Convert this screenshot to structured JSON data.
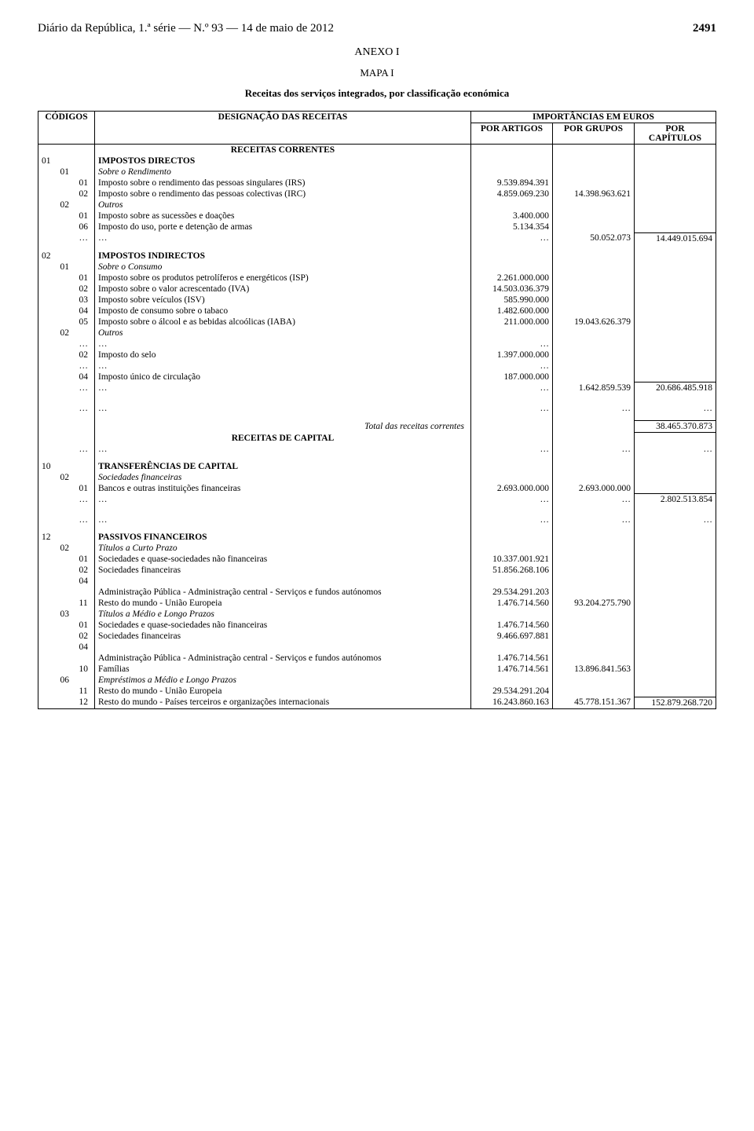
{
  "header": {
    "journal": "Diário da República, 1.ª série — N.º 93 — 14 de maio de 2012",
    "page_number": "2491"
  },
  "titles": {
    "anexo": "ANEXO I",
    "mapa": "MAPA I",
    "subtitle": "Receitas dos serviços integrados, por classificação económica"
  },
  "table_head": {
    "codigos": "CÓDIGOS",
    "designacao": "DESIGNAÇÃO DAS RECEITAS",
    "importancias": "IMPORTÂNCIAS EM EUROS",
    "por_artigos": "POR ARTIGOS",
    "por_grupos": "POR GRUPOS",
    "por_capitulos": "POR\nCAPÍTULOS"
  },
  "body_sections": {
    "receitas_correntes": "RECEITAS CORRENTES",
    "receitas_capital": "RECEITAS DE CAPITAL"
  },
  "labels": {
    "total_correntes": "Total das receitas correntes",
    "dots": "…"
  },
  "sec01": {
    "code": "01",
    "title": "IMPOSTOS DIRECTOS",
    "g01": {
      "code": "01",
      "title": "Sobre o Rendimento",
      "r01": {
        "code": "01",
        "desig": "Imposto sobre o rendimento das pessoas singulares (IRS)",
        "art": "9.539.894.391"
      },
      "r02": {
        "code": "02",
        "desig": "Imposto sobre o rendimento das pessoas colectivas (IRC)",
        "art": "4.859.069.230",
        "grp": "14.398.963.621"
      }
    },
    "g02": {
      "code": "02",
      "title": "Outros",
      "r01": {
        "code": "01",
        "desig": "Imposto sobre as sucessões e doações",
        "art": "3.400.000"
      },
      "r06": {
        "code": "06",
        "desig": "Imposto do uso, porte e detenção de armas",
        "art": "5.134.354"
      },
      "rdots_grp": "50.052.073",
      "cap": "14.449.015.694"
    }
  },
  "sec02": {
    "code": "02",
    "title": "IMPOSTOS INDIRECTOS",
    "g01": {
      "code": "01",
      "title": "Sobre o Consumo",
      "r01": {
        "code": "01",
        "desig": "Imposto sobre os produtos petrolíferos e energéticos (ISP)",
        "art": "2.261.000.000"
      },
      "r02": {
        "code": "02",
        "desig": "Imposto sobre o valor acrescentado (IVA)",
        "art": "14.503.036.379"
      },
      "r03": {
        "code": "03",
        "desig": "Imposto sobre veículos (ISV)",
        "art": "585.990.000"
      },
      "r04": {
        "code": "04",
        "desig": "Imposto de consumo sobre o tabaco",
        "art": "1.482.600.000"
      },
      "r05": {
        "code": "05",
        "desig": "Imposto sobre o álcool e as bebidas alcoólicas (IABA)",
        "art": "211.000.000",
        "grp": "19.043.626.379"
      }
    },
    "g02": {
      "code": "02",
      "title": "Outros",
      "r02": {
        "code": "02",
        "desig": "Imposto do selo",
        "art": "1.397.000.000"
      },
      "r04": {
        "code": "04",
        "desig": "Imposto único de circulação",
        "art": "187.000.000"
      },
      "rdots_grp": "1.642.859.539",
      "cap": "20.686.485.918"
    }
  },
  "total_correntes_val": "38.465.370.873",
  "sec10": {
    "code": "10",
    "title": "TRANSFERÊNCIAS DE CAPITAL",
    "g02": {
      "code": "02",
      "title": "Sociedades financeiras",
      "r01": {
        "code": "01",
        "desig": "Bancos e outras instituições financeiras",
        "art": "2.693.000.000",
        "grp": "2.693.000.000"
      },
      "cap": "2.802.513.854"
    }
  },
  "sec12": {
    "code": "12",
    "title": "PASSIVOS FINANCEIROS",
    "g02": {
      "code": "02",
      "title": "Títulos a Curto Prazo",
      "r01": {
        "code": "01",
        "desig": "Sociedades e quase-sociedades não financeiras",
        "art": "10.337.001.921"
      },
      "r02": {
        "code": "02",
        "desig": "Sociedades financeiras",
        "art": "51.856.268.106"
      },
      "r04": {
        "code": "04",
        "desig": ""
      },
      "r04b": {
        "desig": "Administração Pública - Administração central - Serviços e fundos autónomos",
        "art": "29.534.291.203"
      },
      "r11": {
        "code": "11",
        "desig": "Resto do mundo - União Europeia",
        "art": "1.476.714.560",
        "grp": "93.204.275.790"
      }
    },
    "g03": {
      "code": "03",
      "title": "Títulos a Médio e Longo Prazos",
      "r01": {
        "code": "01",
        "desig": "Sociedades e quase-sociedades não financeiras",
        "art": "1.476.714.560"
      },
      "r02": {
        "code": "02",
        "desig": "Sociedades financeiras",
        "art": "9.466.697.881"
      },
      "r04": {
        "code": "04",
        "desig": ""
      },
      "r04b": {
        "desig": "Administração Pública - Administração central - Serviços e fundos autónomos",
        "art": "1.476.714.561"
      },
      "r10": {
        "code": "10",
        "desig": "Famílias",
        "art": "1.476.714.561",
        "grp": "13.896.841.563"
      }
    },
    "g06": {
      "code": "06",
      "title": "Empréstimos a Médio e Longo Prazos",
      "r11": {
        "code": "11",
        "desig": "Resto do mundo - União Europeia",
        "art": "29.534.291.204"
      },
      "r12": {
        "code": "12",
        "desig": "Resto do mundo - Países terceiros e organizações internacionais",
        "art": "16.243.860.163",
        "grp": "45.778.151.367"
      },
      "cap": "152.879.268.720"
    }
  }
}
